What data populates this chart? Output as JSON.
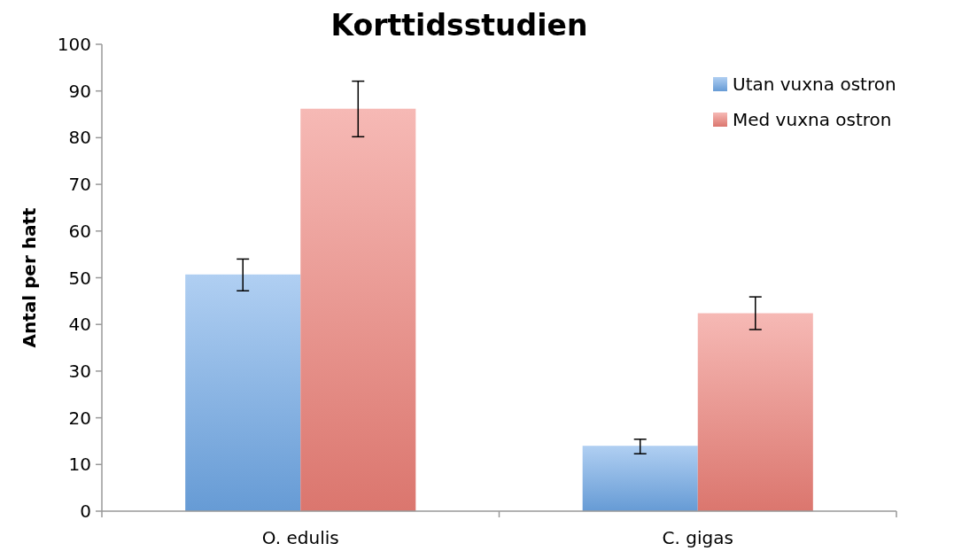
{
  "chart_data": {
    "type": "bar",
    "title": "Korttidsstudien",
    "ylabel": "Antal per hatt",
    "categories": [
      "O. edulis",
      "C. gigas"
    ],
    "series": [
      {
        "name": "Utan vuxna ostron",
        "color": "#6fa8e8",
        "values": [
          50.7,
          14.0
        ],
        "errors": [
          [
            47.2,
            54.0
          ],
          [
            12.3,
            15.4
          ]
        ]
      },
      {
        "name": "Med vuxna ostron",
        "color": "#ee8078",
        "values": [
          86.2,
          42.4
        ],
        "errors": [
          [
            80.2,
            92.1
          ],
          [
            38.9,
            45.9
          ]
        ]
      }
    ],
    "ylim": [
      0,
      100
    ],
    "yticks": [
      0,
      10,
      20,
      30,
      40,
      50,
      60,
      70,
      80,
      90,
      100
    ],
    "grid": false,
    "legend": "top right"
  }
}
